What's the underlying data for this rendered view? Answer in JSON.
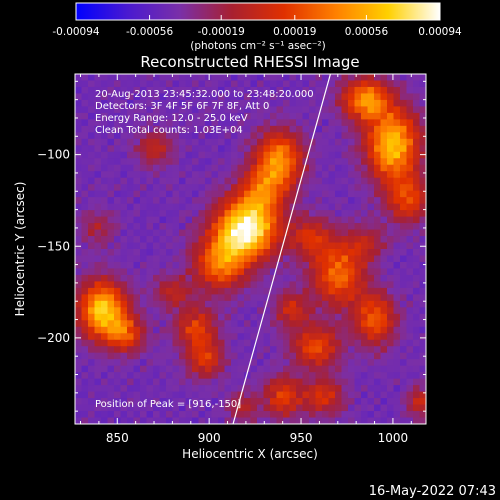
{
  "chart_data": {
    "type": "heatmap",
    "title": "Reconstructed RHESSI Image",
    "xlabel": "Heliocentric X (arcsec)",
    "ylabel": "Heliocentric Y (arcsec)",
    "xlim": [
      827,
      1018
    ],
    "ylim": [
      -247,
      -56
    ],
    "x_ticks": [
      850,
      900,
      950,
      1000
    ],
    "x_tick_labels": [
      "850",
      "900",
      "950",
      "1000"
    ],
    "y_ticks": [
      -100,
      -150,
      -200
    ],
    "y_tick_labels": [
      "−100",
      "−150",
      "−200"
    ],
    "colorbar": {
      "ticks": [
        -0.00094,
        -0.00056,
        -0.00019,
        0.00019,
        0.00056,
        0.00094
      ],
      "tick_labels": [
        "-0.00094",
        "-0.00056",
        "-0.00019",
        "0.00019",
        "0.00056",
        "0.00094"
      ],
      "range": [
        -0.00094,
        0.00094
      ],
      "colors": [
        "#0000ff",
        "#4a1ad0",
        "#7a2fa8",
        "#a82030",
        "#e03000",
        "#ff8000",
        "#ffd000",
        "#ffffff"
      ]
    },
    "annotations": [
      "20-Aug-2013 23:45:32.000 to 23:48:20.000",
      "Detectors: 3F 4F 5F 6F 7F 8F, Att 0",
      "Energy Range: 12.0 - 25.0 keV",
      "Clean     Total counts: 1.03E+04"
    ],
    "peak_label": "Position of Peak = [916,-150]",
    "limb_line": [
      [
        913,
        -247
      ],
      [
        966,
        -56
      ]
    ],
    "blobs": [
      {
        "x": 920,
        "y": -141,
        "amp": 2.3,
        "sx": 12,
        "sy": 11
      },
      {
        "x": 906,
        "y": -160,
        "amp": 1.3,
        "sx": 10,
        "sy": 10
      },
      {
        "x": 938,
        "y": -103,
        "amp": 1.5,
        "sx": 9,
        "sy": 11
      },
      {
        "x": 928,
        "y": -120,
        "amp": 1.0,
        "sx": 9,
        "sy": 9
      },
      {
        "x": 1000,
        "y": -95,
        "amp": 1.8,
        "sx": 10,
        "sy": 14
      },
      {
        "x": 985,
        "y": -70,
        "amp": 1.5,
        "sx": 9,
        "sy": 8
      },
      {
        "x": 1008,
        "y": -125,
        "amp": 1.0,
        "sx": 8,
        "sy": 9
      },
      {
        "x": 970,
        "y": -165,
        "amp": 1.3,
        "sx": 10,
        "sy": 12
      },
      {
        "x": 990,
        "y": -190,
        "amp": 1.2,
        "sx": 8,
        "sy": 10
      },
      {
        "x": 958,
        "y": -205,
        "amp": 1.1,
        "sx": 9,
        "sy": 8
      },
      {
        "x": 945,
        "y": -185,
        "amp": 0.8,
        "sx": 7,
        "sy": 7
      },
      {
        "x": 842,
        "y": -185,
        "amp": 1.9,
        "sx": 9,
        "sy": 11
      },
      {
        "x": 855,
        "y": -198,
        "amp": 1.0,
        "sx": 7,
        "sy": 7
      },
      {
        "x": 893,
        "y": -195,
        "amp": 1.0,
        "sx": 8,
        "sy": 8
      },
      {
        "x": 898,
        "y": -212,
        "amp": 0.9,
        "sx": 7,
        "sy": 7
      },
      {
        "x": 880,
        "y": -175,
        "amp": 0.7,
        "sx": 7,
        "sy": 6
      },
      {
        "x": 940,
        "y": -232,
        "amp": 1.0,
        "sx": 7,
        "sy": 8
      },
      {
        "x": 962,
        "y": -232,
        "amp": 0.9,
        "sx": 8,
        "sy": 7
      },
      {
        "x": 955,
        "y": -145,
        "amp": 0.8,
        "sx": 8,
        "sy": 8
      },
      {
        "x": 985,
        "y": -148,
        "amp": 0.6,
        "sx": 8,
        "sy": 7
      },
      {
        "x": 870,
        "y": -97,
        "amp": 0.7,
        "sx": 7,
        "sy": 7
      },
      {
        "x": 840,
        "y": -140,
        "amp": 0.5,
        "sx": 7,
        "sy": 7
      },
      {
        "x": 918,
        "y": -238,
        "amp": 0.6,
        "sx": 6,
        "sy": 6
      },
      {
        "x": 1015,
        "y": -235,
        "amp": 0.8,
        "sx": 5,
        "sy": 6
      }
    ]
  },
  "colorbar_unit": "(photons cm⁻² s⁻¹ asec⁻²)",
  "footer": {
    "timestamp": "16-May-2022 07:43"
  }
}
